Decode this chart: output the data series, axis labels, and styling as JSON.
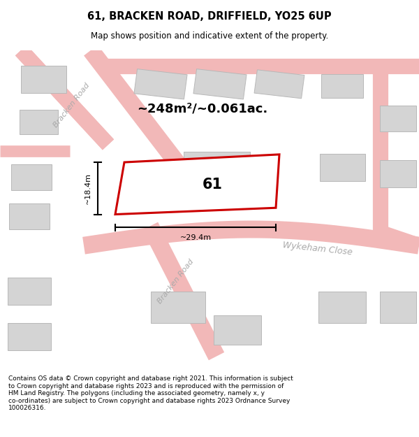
{
  "title": "61, BRACKEN ROAD, DRIFFIELD, YO25 6UP",
  "subtitle": "Map shows position and indicative extent of the property.",
  "footer": "Contains OS data © Crown copyright and database right 2021. This information is subject\nto Crown copyright and database rights 2023 and is reproduced with the permission of\nHM Land Registry. The polygons (including the associated geometry, namely x, y\nco-ordinates) are subject to Crown copyright and database rights 2023 Ordnance Survey\n100026316.",
  "bg_color": "#efefef",
  "road_color": "#f2b8b8",
  "building_color": "#d4d4d4",
  "building_edge": "#b8b8b8",
  "highlight_edge": "#cc0000",
  "highlight_fill": "#ffffff",
  "area_text": "~248m²/~0.061ac.",
  "label_61": "61",
  "dim_height": "~18.4m",
  "dim_width": "~29.4m",
  "road_label_upper": "Bracken Road",
  "road_label_lower": "Bracken Road",
  "close_label": "Wykeham Close",
  "road_label_color": "#aaaaaa",
  "title_fontsize": 10.5,
  "subtitle_fontsize": 8.5,
  "area_fontsize": 13,
  "label_fontsize": 15,
  "dim_fontsize": 8,
  "footer_fontsize": 6.5
}
